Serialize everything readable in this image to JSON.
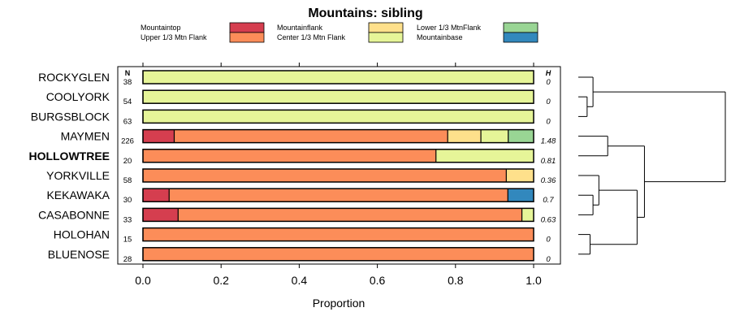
{
  "chart_data": {
    "type": "bar",
    "orientation": "horizontal",
    "stacked": true,
    "title": "Mountains: sibling",
    "xlabel": "Proportion",
    "ylabel": "",
    "xlim": [
      0,
      1
    ],
    "xticks": [
      "0.0",
      "0.2",
      "0.4",
      "0.6",
      "0.8",
      "1.0"
    ],
    "n_header": "N",
    "h_header": "H",
    "legend_position": "top",
    "categories": [
      "ROCKYGLEN",
      "COOLYORK",
      "BURGSBLOCK",
      "MAYMEN",
      "HOLLOWTREE",
      "YORKVILLE",
      "KEKAWAKA",
      "CASABONNE",
      "HOLOHAN",
      "BLUENOSE"
    ],
    "highlighted": "HOLLOWTREE",
    "n": [
      "38",
      "54",
      "63",
      "226",
      "20",
      "58",
      "30",
      "33",
      "15",
      "28"
    ],
    "h": [
      "0",
      "0",
      "0",
      "1.48",
      "0.81",
      "0.36",
      "0.7",
      "0.63",
      "0",
      "0"
    ],
    "series": [
      {
        "name": "Mountaintop",
        "color": "#d53e4f",
        "values": [
          0,
          0,
          0,
          0.08,
          0,
          0,
          0.067,
          0.09,
          0,
          0
        ]
      },
      {
        "name": "Upper 1/3 Mtn Flank",
        "color": "#fc8d59",
        "values": [
          0,
          0,
          0,
          0.7,
          0.75,
          0.93,
          0.867,
          0.88,
          1.0,
          1.0
        ]
      },
      {
        "name": "Mountainflank",
        "color": "#fee08b",
        "values": [
          0,
          0,
          0,
          0.085,
          0,
          0.07,
          0,
          0,
          0,
          0
        ]
      },
      {
        "name": "Center 1/3 Mtn Flank",
        "color": "#e6f598",
        "values": [
          1.0,
          1.0,
          1.0,
          0.07,
          0.25,
          0,
          0,
          0.03,
          0,
          0
        ]
      },
      {
        "name": "Lower 1/3 MtnFlank",
        "color": "#99d594",
        "values": [
          0,
          0,
          0,
          0.065,
          0,
          0,
          0,
          0,
          0,
          0
        ]
      },
      {
        "name": "Mountainbase",
        "color": "#3288bd",
        "values": [
          0,
          0,
          0,
          0,
          0,
          0,
          0.066,
          0,
          0,
          0
        ]
      }
    ],
    "dendrogram": {
      "leaf_order": [
        "ROCKYGLEN",
        "COOLYORK",
        "BURGSBLOCK",
        "MAYMEN",
        "HOLLOWTREE",
        "YORKVILLE",
        "KEKAWAKA",
        "CASABONNE",
        "HOLOHAN",
        "BLUENOSE"
      ],
      "merges": [
        {
          "a": "L1",
          "b": "L2",
          "height": 0.06
        },
        {
          "a": "L0",
          "b": "M0",
          "height": 0.1
        },
        {
          "a": "L3",
          "b": "L4",
          "height": 0.2
        },
        {
          "a": "L6",
          "b": "L7",
          "height": 0.1
        },
        {
          "a": "L5",
          "b": "M3",
          "height": 0.14
        },
        {
          "a": "L8",
          "b": "L9",
          "height": 0.08
        },
        {
          "a": "M4",
          "b": "M5",
          "height": 0.4
        },
        {
          "a": "M2",
          "b": "M6",
          "height": 0.45
        },
        {
          "a": "M1",
          "b": "M7",
          "height": 1.0
        }
      ]
    }
  }
}
